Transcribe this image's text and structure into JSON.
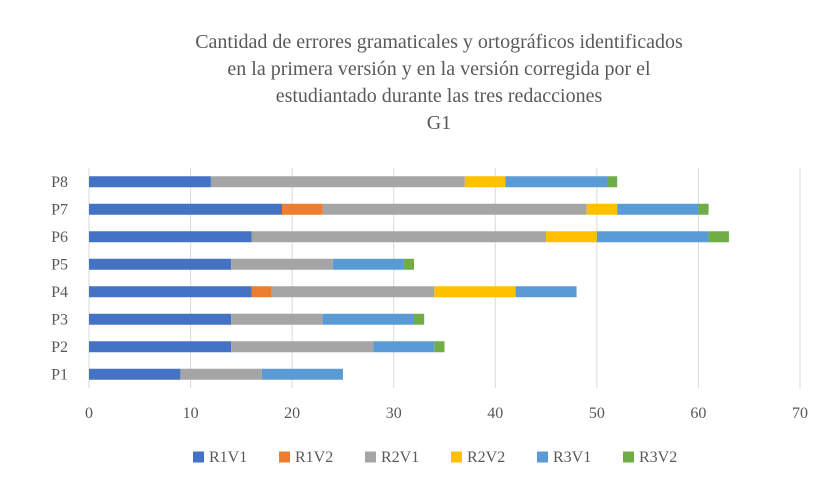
{
  "chart_data": {
    "type": "bar",
    "orientation": "horizontal",
    "stacked": true,
    "title_lines": [
      "Cantidad de errores gramaticales y ortográficos identificados",
      "en la primera versión y en la versión corregida por el",
      "estudiantado durante las tres redacciones",
      "G1"
    ],
    "categories": [
      "P1",
      "P2",
      "P3",
      "P4",
      "P5",
      "P6",
      "P7",
      "P8"
    ],
    "series": [
      {
        "name": "R1V1",
        "color": "#4472c4",
        "values": [
          9,
          14,
          14,
          16,
          14,
          16,
          19,
          12
        ]
      },
      {
        "name": "R1V2",
        "color": "#ed7d31",
        "values": [
          0,
          0,
          0,
          2,
          0,
          0,
          4,
          0
        ]
      },
      {
        "name": "R2V1",
        "color": "#a5a5a5",
        "values": [
          8,
          14,
          9,
          16,
          10,
          29,
          26,
          25
        ]
      },
      {
        "name": "R2V2",
        "color": "#ffc000",
        "values": [
          0,
          0,
          0,
          8,
          0,
          5,
          3,
          4
        ]
      },
      {
        "name": "R3V1",
        "color": "#5b9bd5",
        "values": [
          8,
          6,
          9,
          6,
          7,
          11,
          8,
          10
        ]
      },
      {
        "name": "R3V2",
        "color": "#70ad47",
        "values": [
          0,
          1,
          1,
          0,
          1,
          2,
          1,
          1
        ]
      }
    ],
    "xlim": [
      0,
      70
    ],
    "xticks": [
      "0",
      "10",
      "20",
      "30",
      "40",
      "50",
      "60",
      "70"
    ],
    "grid": "vertical",
    "legend_position": "bottom"
  }
}
